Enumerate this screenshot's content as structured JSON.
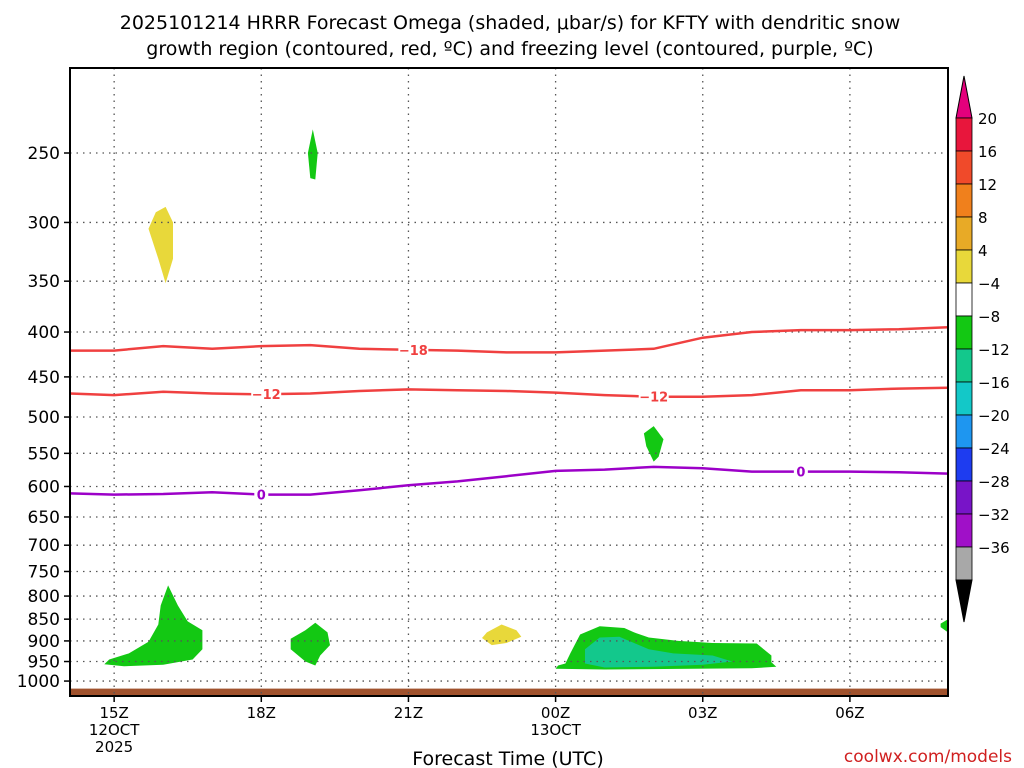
{
  "chart_data": {
    "type": "heatmap",
    "title_line1": "2025101214 HRRR Forecast Omega (shaded, μbar/s) for KFTY with dendritic snow",
    "title_line2": "growth region (contoured, red, ºC) and freezing level (contoured, purple, ºC)",
    "xlabel": "Forecast Time (UTC)",
    "watermark": "coolwx.com/models",
    "x_range_hours": [
      14.1,
      32.0
    ],
    "y_scale": "log-pressure",
    "y_range_hPa": [
      1040,
      200
    ],
    "y_ticks": [
      250,
      300,
      350,
      400,
      450,
      500,
      550,
      600,
      650,
      700,
      750,
      800,
      850,
      900,
      950,
      1000
    ],
    "x_ticks": [
      {
        "hour": 15,
        "line1": "15Z",
        "line2": "12OCT",
        "line3": "2025"
      },
      {
        "hour": 18,
        "line1": "18Z",
        "line2": "",
        "line3": ""
      },
      {
        "hour": 21,
        "line1": "21Z",
        "line2": "",
        "line3": ""
      },
      {
        "hour": 24,
        "line1": "00Z",
        "line2": "13OCT",
        "line3": ""
      },
      {
        "hour": 27,
        "line1": "03Z",
        "line2": "",
        "line3": ""
      },
      {
        "hour": 30,
        "line1": "06Z",
        "line2": "",
        "line3": ""
      }
    ],
    "grid": true,
    "ground_fill_color": "#a0522d",
    "ground_top_hPa": 1020,
    "colorbar": {
      "labels": [
        "20",
        "16",
        "12",
        "8",
        "4",
        "−4",
        "−8",
        "−12",
        "−16",
        "−20",
        "−24",
        "−28",
        "−32",
        "−36"
      ],
      "colors": [
        "#e8163c",
        "#f04a2a",
        "#f0801c",
        "#e8aa26",
        "#e8d83a",
        "#ffffff",
        "#13c813",
        "#13c88c",
        "#13c8c8",
        "#1e96f0",
        "#1e3cf0",
        "#7814c8",
        "#a010c8",
        "#a8a8a8"
      ],
      "top_arrow_color": "#e4007c",
      "bottom_arrow_color": "#000000"
    },
    "contours": [
      {
        "name": "-18",
        "color": "#f04040",
        "label": "−18",
        "label_hour": 21.1,
        "points": [
          [
            14.1,
            420
          ],
          [
            15,
            420
          ],
          [
            16,
            415
          ],
          [
            17,
            418
          ],
          [
            18,
            415
          ],
          [
            19,
            414
          ],
          [
            20,
            418
          ],
          [
            21,
            419
          ],
          [
            22,
            420
          ],
          [
            23,
            422
          ],
          [
            24,
            422
          ],
          [
            25,
            420
          ],
          [
            26,
            418
          ],
          [
            27,
            406
          ],
          [
            28,
            400
          ],
          [
            29,
            398
          ],
          [
            30,
            398
          ],
          [
            31,
            397
          ],
          [
            32,
            395
          ]
        ]
      },
      {
        "name": "-12",
        "color": "#f04040",
        "label": "−12",
        "label_hour": 18.1,
        "label2_hour": 26.0,
        "points": [
          [
            14.1,
            470
          ],
          [
            15,
            472
          ],
          [
            16,
            468
          ],
          [
            17,
            470
          ],
          [
            18,
            471
          ],
          [
            19,
            470
          ],
          [
            20,
            467
          ],
          [
            21,
            465
          ],
          [
            22,
            466
          ],
          [
            23,
            467
          ],
          [
            24,
            469
          ],
          [
            25,
            472
          ],
          [
            26,
            474
          ],
          [
            27,
            474
          ],
          [
            28,
            472
          ],
          [
            29,
            466
          ],
          [
            30,
            466
          ],
          [
            31,
            464
          ],
          [
            32,
            463
          ]
        ]
      },
      {
        "name": "0",
        "color": "#9c00c8",
        "label": "0",
        "label_hour": 18.0,
        "label2_hour": 29.0,
        "points": [
          [
            14.1,
            611
          ],
          [
            15,
            613
          ],
          [
            16,
            612
          ],
          [
            17,
            609
          ],
          [
            18,
            613
          ],
          [
            19,
            613
          ],
          [
            20,
            606
          ],
          [
            21,
            598
          ],
          [
            22,
            592
          ],
          [
            23,
            584
          ],
          [
            24,
            576
          ],
          [
            25,
            574
          ],
          [
            26,
            570
          ],
          [
            27,
            572
          ],
          [
            28,
            577
          ],
          [
            29,
            577
          ],
          [
            30,
            577
          ],
          [
            31,
            578
          ],
          [
            32,
            580
          ]
        ]
      }
    ],
    "shaded_regions": [
      {
        "name": "green-400-top",
        "color": "#13c813",
        "points": [
          [
            19.05,
            235
          ],
          [
            19.15,
            250
          ],
          [
            19.1,
            268
          ],
          [
            19.0,
            267
          ],
          [
            18.95,
            250
          ]
        ]
      },
      {
        "name": "yellow-upper",
        "color": "#e8d83a",
        "points": [
          [
            16.05,
            288
          ],
          [
            16.2,
            300
          ],
          [
            16.2,
            330
          ],
          [
            16.05,
            352
          ],
          [
            15.9,
            330
          ],
          [
            15.7,
            305
          ],
          [
            15.85,
            292
          ]
        ]
      },
      {
        "name": "green-550",
        "color": "#13c813",
        "points": [
          [
            26.0,
            512
          ],
          [
            26.2,
            530
          ],
          [
            26.1,
            555
          ],
          [
            26.0,
            562
          ],
          [
            25.85,
            540
          ],
          [
            25.8,
            522
          ]
        ]
      },
      {
        "name": "green-low-1",
        "color": "#13c813",
        "points": [
          [
            14.9,
            945
          ],
          [
            15.3,
            930
          ],
          [
            15.7,
            902
          ],
          [
            15.9,
            862
          ],
          [
            15.95,
            820
          ],
          [
            16.1,
            778
          ],
          [
            16.3,
            820
          ],
          [
            16.5,
            855
          ],
          [
            16.8,
            875
          ],
          [
            16.8,
            920
          ],
          [
            16.6,
            945
          ],
          [
            16.0,
            958
          ],
          [
            15.2,
            962
          ],
          [
            14.8,
            957
          ]
        ]
      },
      {
        "name": "green-low-2",
        "color": "#13c813",
        "points": [
          [
            18.9,
            875
          ],
          [
            19.1,
            858
          ],
          [
            19.35,
            880
          ],
          [
            19.4,
            910
          ],
          [
            19.2,
            935
          ],
          [
            19.1,
            960
          ],
          [
            18.9,
            950
          ],
          [
            18.6,
            920
          ],
          [
            18.6,
            895
          ]
        ]
      },
      {
        "name": "yellow-low",
        "color": "#e8d83a",
        "points": [
          [
            22.6,
            880
          ],
          [
            22.9,
            862
          ],
          [
            23.2,
            875
          ],
          [
            23.3,
            890
          ],
          [
            23.0,
            905
          ],
          [
            22.7,
            910
          ],
          [
            22.5,
            893
          ]
        ]
      },
      {
        "name": "green-low-3",
        "color": "#13c813",
        "points": [
          [
            24.2,
            955
          ],
          [
            24.3,
            930
          ],
          [
            24.5,
            885
          ],
          [
            24.9,
            866
          ],
          [
            25.4,
            870
          ],
          [
            25.6,
            880
          ],
          [
            25.9,
            892
          ],
          [
            26.5,
            900
          ],
          [
            27.2,
            905
          ],
          [
            28.1,
            906
          ],
          [
            28.4,
            935
          ],
          [
            28.4,
            952
          ],
          [
            28.5,
            963
          ],
          [
            28.0,
            967
          ],
          [
            25.0,
            970
          ],
          [
            24.0,
            968
          ],
          [
            24.05,
            960
          ]
        ]
      },
      {
        "name": "teal-low-3",
        "color": "#13c88c",
        "points": [
          [
            24.6,
            955
          ],
          [
            24.6,
            920
          ],
          [
            24.9,
            892
          ],
          [
            25.3,
            890
          ],
          [
            25.6,
            905
          ],
          [
            25.9,
            920
          ],
          [
            26.4,
            930
          ],
          [
            27.2,
            935
          ],
          [
            27.6,
            950
          ],
          [
            27.0,
            958
          ],
          [
            26.0,
            963
          ],
          [
            25.0,
            965
          ]
        ]
      },
      {
        "name": "green-edge",
        "color": "#13c813",
        "points": [
          [
            31.85,
            860
          ],
          [
            32.0,
            850
          ],
          [
            32.0,
            880
          ],
          [
            31.85,
            868
          ]
        ]
      }
    ]
  }
}
